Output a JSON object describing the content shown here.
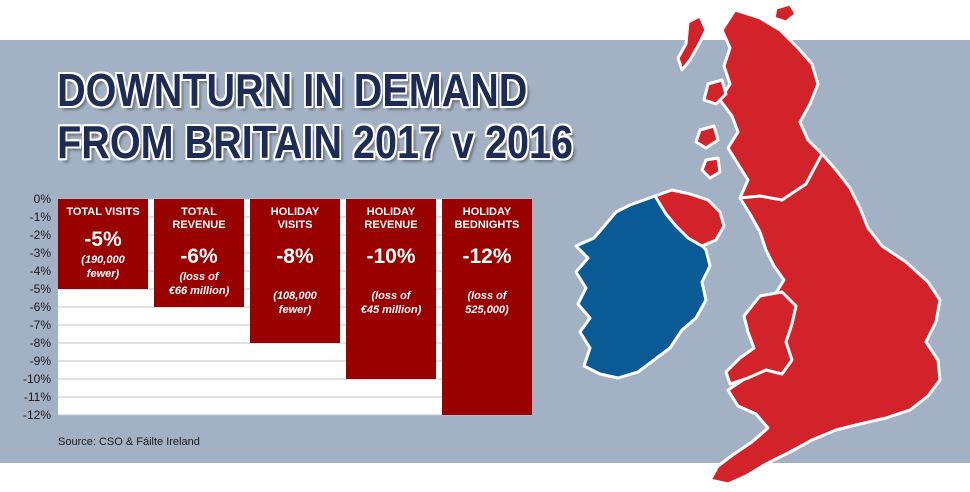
{
  "title": {
    "line1": "DOWNTURN IN DEMAND",
    "line2": "FROM BRITAIN 2017 v 2016"
  },
  "source": "Source: CSO & Fáilte Ireland",
  "colors": {
    "bar": "#990000",
    "panel": "#a3b1c5",
    "title": "#1d2b55",
    "ireland": "#0a5a96",
    "britain": "#d2232a"
  },
  "map_icon": "britain-and-ireland-map",
  "chart_data": {
    "type": "bar",
    "categories": [
      [
        "TOTAL VISITS"
      ],
      [
        "TOTAL",
        "REVENUE"
      ],
      [
        "HOLIDAY",
        "VISITS"
      ],
      [
        "HOLIDAY",
        "REVENUE"
      ],
      [
        "HOLIDAY",
        "BEDNIGHTS"
      ]
    ],
    "values": [
      -5,
      -6,
      -8,
      -10,
      -12
    ],
    "value_labels": [
      "-5%",
      "-6%",
      "-8%",
      "-10%",
      "-12%"
    ],
    "notes": [
      [
        "(190,000",
        "fewer)"
      ],
      [
        "(loss of",
        "€66 million)"
      ],
      [
        "(108,000",
        "fewer)"
      ],
      [
        "(loss of",
        "€45 million)"
      ],
      [
        "(loss of",
        "525,000)"
      ]
    ],
    "yticks": [
      "0%",
      "-1%",
      "-2%",
      "-3%",
      "-4%",
      "-5%",
      "-6%",
      "-7%",
      "-8%",
      "-9%",
      "-10%",
      "-11%",
      "-12%"
    ],
    "ylim": [
      -12,
      0
    ],
    "grid": true,
    "title": "DOWNTURN IN DEMAND FROM BRITAIN 2017 v 2016"
  }
}
